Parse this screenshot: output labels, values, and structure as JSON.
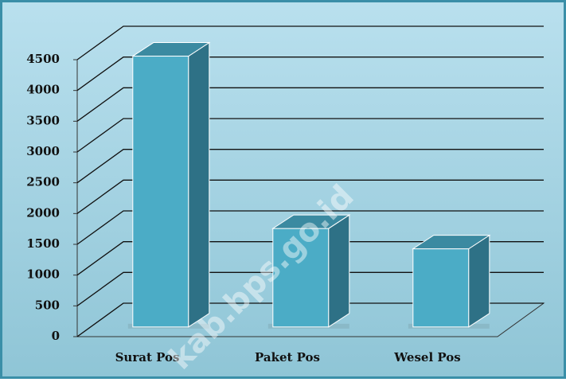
{
  "chart_data": {
    "type": "bar3d",
    "categories": [
      "Surat Pos",
      "Paket Pos",
      "Wesel Pos"
    ],
    "values": [
      4400,
      1600,
      1270
    ],
    "color": "#4bacc6",
    "ylim": [
      0,
      4500
    ],
    "yticks": [
      0,
      500,
      1000,
      1500,
      2000,
      2500,
      3000,
      3500,
      4000,
      4500
    ],
    "grid": true,
    "watermark": "kab.bps.go.id"
  }
}
